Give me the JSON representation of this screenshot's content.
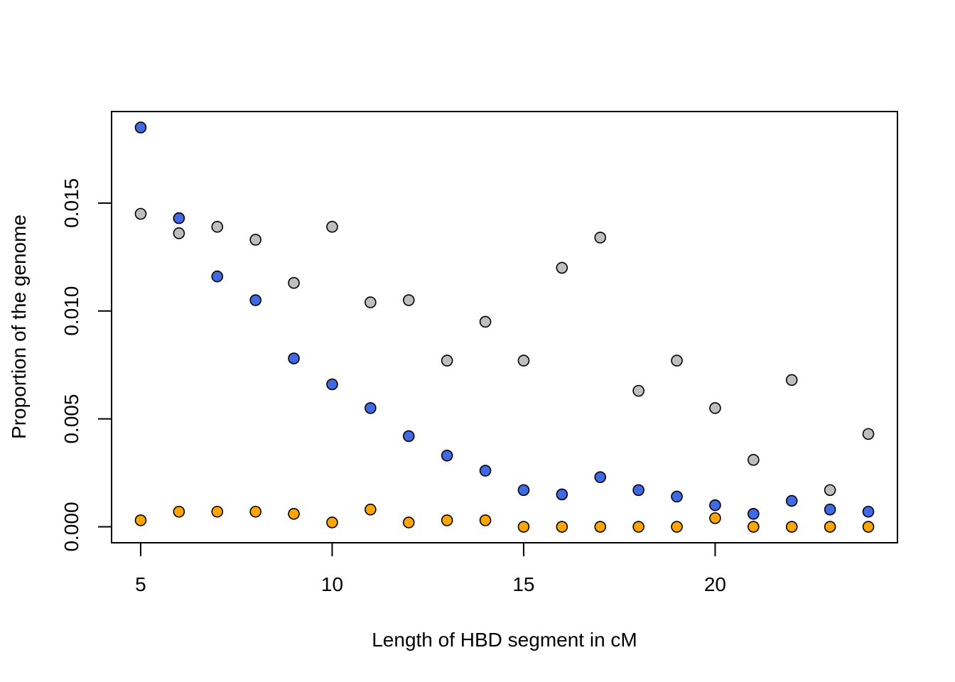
{
  "chart_data": {
    "type": "scatter",
    "title": "",
    "xlabel": "Length of HBD segment in cM",
    "ylabel": "Proportion of the genome",
    "xlim": [
      4.24,
      24.76
    ],
    "ylim": [
      -0.00074,
      0.01924
    ],
    "x_ticks": [
      5,
      10,
      15,
      20
    ],
    "x_tick_labels": [
      "5",
      "10",
      "15",
      "20"
    ],
    "y_ticks": [
      0.0,
      0.005,
      0.01,
      0.015
    ],
    "y_tick_labels": [
      "0.000",
      "0.005",
      "0.010",
      "0.015"
    ],
    "grid": false,
    "legend": "none",
    "x": [
      5,
      6,
      7,
      8,
      9,
      10,
      11,
      12,
      13,
      14,
      15,
      16,
      17,
      18,
      19,
      20,
      21,
      22,
      23,
      24
    ],
    "series": [
      {
        "color": "#4169E1",
        "values": [
          0.0185,
          0.0143,
          0.0116,
          0.0105,
          0.0078,
          0.0066,
          0.0055,
          0.0042,
          0.0033,
          0.0026,
          0.0017,
          0.0015,
          0.0023,
          0.0017,
          0.0014,
          0.001,
          0.0006,
          0.0012,
          0.0008,
          0.0007
        ]
      },
      {
        "color": "#BEBEBE",
        "values": [
          0.0145,
          0.0136,
          0.0139,
          0.0133,
          0.0113,
          0.0139,
          0.0104,
          0.0105,
          0.0077,
          0.0095,
          0.0077,
          0.012,
          0.0134,
          0.0063,
          0.0077,
          0.0055,
          0.0031,
          0.0068,
          0.0017,
          0.0043
        ]
      },
      {
        "color": "#FFA500",
        "values": [
          0.0003,
          0.0007,
          0.0007,
          0.0007,
          0.0006,
          0.0002,
          0.0008,
          0.0002,
          0.0003,
          0.0003,
          0.0,
          0.0,
          0.0,
          0.0,
          0.0,
          0.0004,
          0.0,
          0.0,
          0.0,
          0.0
        ]
      }
    ]
  }
}
